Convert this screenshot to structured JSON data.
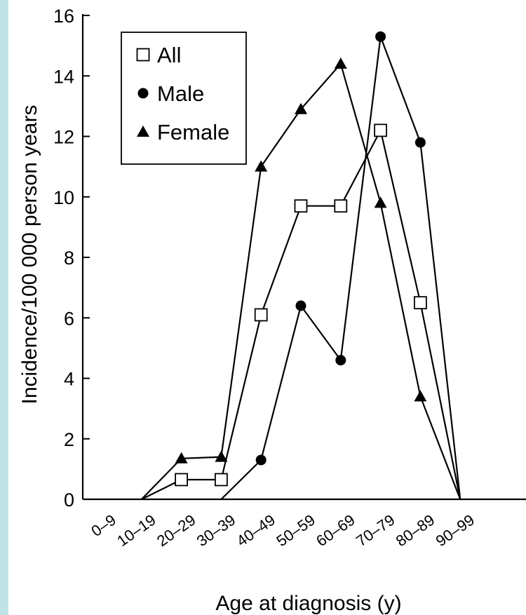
{
  "chart_data": {
    "type": "line",
    "xlabel": "Age at diagnosis (y)",
    "ylabel": "Incidence/100 000 person years",
    "ylim": [
      0,
      16
    ],
    "yticks": [
      0,
      2,
      4,
      6,
      8,
      10,
      12,
      14,
      16
    ],
    "categories": [
      "0–9",
      "10–19",
      "20–29",
      "30–39",
      "40–49",
      "50–59",
      "60–69",
      "70–79",
      "80–89",
      "90–99"
    ],
    "legend_position": "top-left",
    "grid": false,
    "series": [
      {
        "name": "All",
        "marker": "open-square",
        "points": [
          [
            1,
            0
          ],
          [
            2,
            0.65
          ],
          [
            3,
            0.65
          ],
          [
            4,
            6.1
          ],
          [
            5,
            9.7
          ],
          [
            6,
            9.7
          ],
          [
            7,
            12.2
          ],
          [
            8,
            6.5
          ],
          [
            9,
            0
          ]
        ]
      },
      {
        "name": "Male",
        "marker": "filled-circle",
        "points": [
          [
            3,
            0
          ],
          [
            4,
            1.3
          ],
          [
            5,
            6.4
          ],
          [
            6,
            4.6
          ],
          [
            7,
            15.3
          ],
          [
            8,
            11.8
          ],
          [
            9,
            0
          ]
        ]
      },
      {
        "name": "Female",
        "marker": "filled-triangle",
        "points": [
          [
            1,
            0
          ],
          [
            2,
            1.35
          ],
          [
            3,
            1.4
          ],
          [
            4,
            11.0
          ],
          [
            5,
            12.9
          ],
          [
            6,
            14.4
          ],
          [
            7,
            9.8
          ],
          [
            8,
            3.4
          ],
          [
            9,
            0
          ]
        ]
      }
    ]
  }
}
